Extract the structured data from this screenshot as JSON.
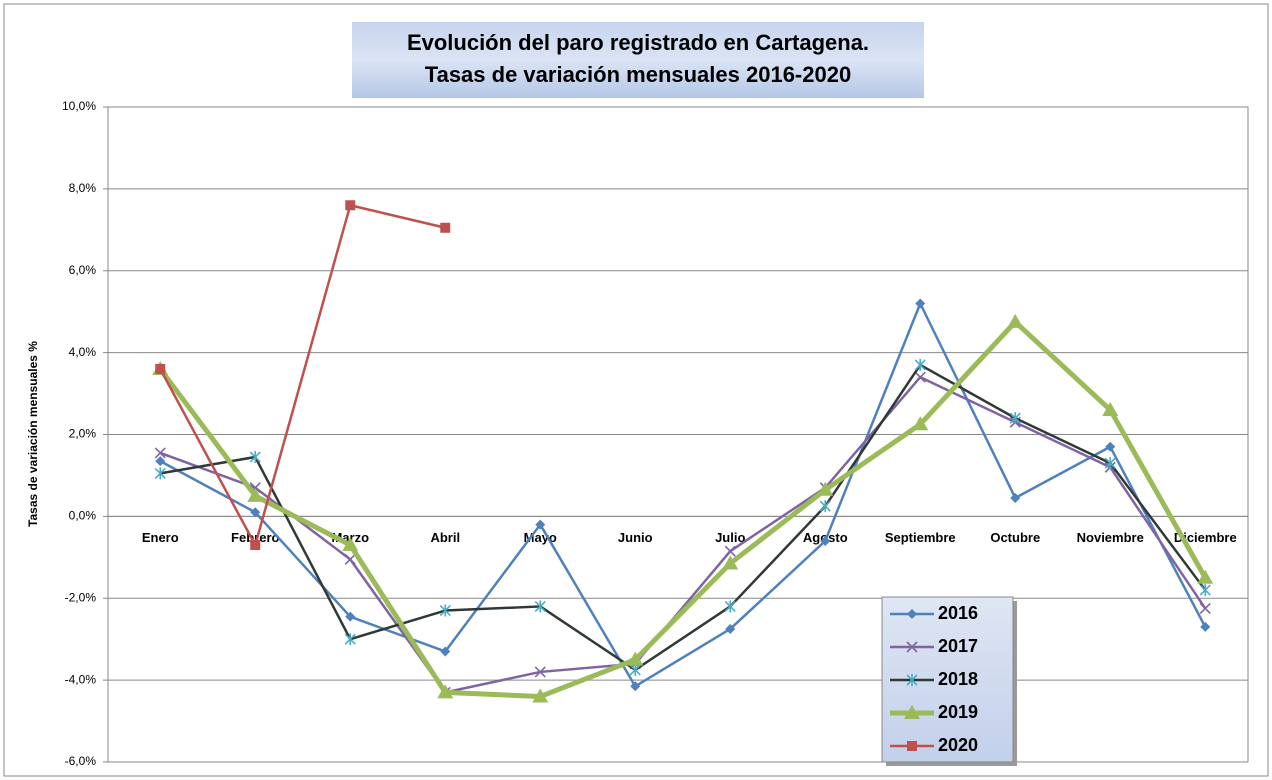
{
  "chart_data": {
    "type": "line",
    "title": "Evolución del paro registrado en Cartagena.",
    "subtitle": "Tasas de variación mensuales 2016-2020",
    "y_label": "Tasas de variación mensuales %",
    "categories": [
      "Enero",
      "Febrero",
      "Marzo",
      "Abril",
      "Mayo",
      "Junio",
      "Julio",
      "Agosto",
      "Septiembre",
      "Octubre",
      "Noviembre",
      "Diciembre"
    ],
    "ylim": [
      -6,
      10
    ],
    "yticks": [
      {
        "value": -6,
        "label": "-6,0%"
      },
      {
        "value": -4,
        "label": "-4,0%"
      },
      {
        "value": -2,
        "label": "-2,0%"
      },
      {
        "value": 0,
        "label": "0,0%"
      },
      {
        "value": 2,
        "label": "2,0%"
      },
      {
        "value": 4,
        "label": "4,0%"
      },
      {
        "value": 6,
        "label": "6,0%"
      },
      {
        "value": 8,
        "label": "8,0%"
      },
      {
        "value": 10,
        "label": "10,0%"
      }
    ],
    "grid": true,
    "legend": "lower right",
    "series": [
      {
        "name": "2016",
        "color": "#4f81bd",
        "marker": "diamond",
        "marker_color": "#4f81bd",
        "values": [
          1.35,
          0.1,
          -2.45,
          -3.3,
          -0.2,
          -4.15,
          -2.75,
          -0.6,
          5.2,
          0.45,
          1.7,
          -2.7
        ]
      },
      {
        "name": "2017",
        "color": "#8064a2",
        "marker": "x",
        "marker_color": "#8064a2",
        "values": [
          1.55,
          0.7,
          -1.05,
          -4.3,
          -3.8,
          -3.6,
          -0.85,
          0.7,
          3.4,
          2.3,
          1.2,
          -2.25
        ]
      },
      {
        "name": "2018",
        "color": "#2f3a36",
        "marker": "asterisk",
        "marker_color": "#4bacc6",
        "values": [
          1.05,
          1.45,
          -3.0,
          -2.3,
          -2.2,
          -3.75,
          -2.2,
          0.25,
          3.7,
          2.4,
          1.3,
          -1.8
        ]
      },
      {
        "name": "2019",
        "color": "#9bbb59",
        "marker": "triangle",
        "marker_color": "#9bbb59",
        "values": [
          3.6,
          0.5,
          -0.7,
          -4.3,
          -4.4,
          -3.5,
          -1.15,
          0.65,
          2.25,
          4.75,
          2.6,
          -1.5
        ]
      },
      {
        "name": "2020",
        "color": "#c0504d",
        "marker": "square",
        "marker_color": "#c0504d",
        "values": [
          3.6,
          -0.7,
          7.6,
          7.05,
          null,
          null,
          null,
          null,
          null,
          null,
          null,
          null
        ]
      }
    ]
  }
}
